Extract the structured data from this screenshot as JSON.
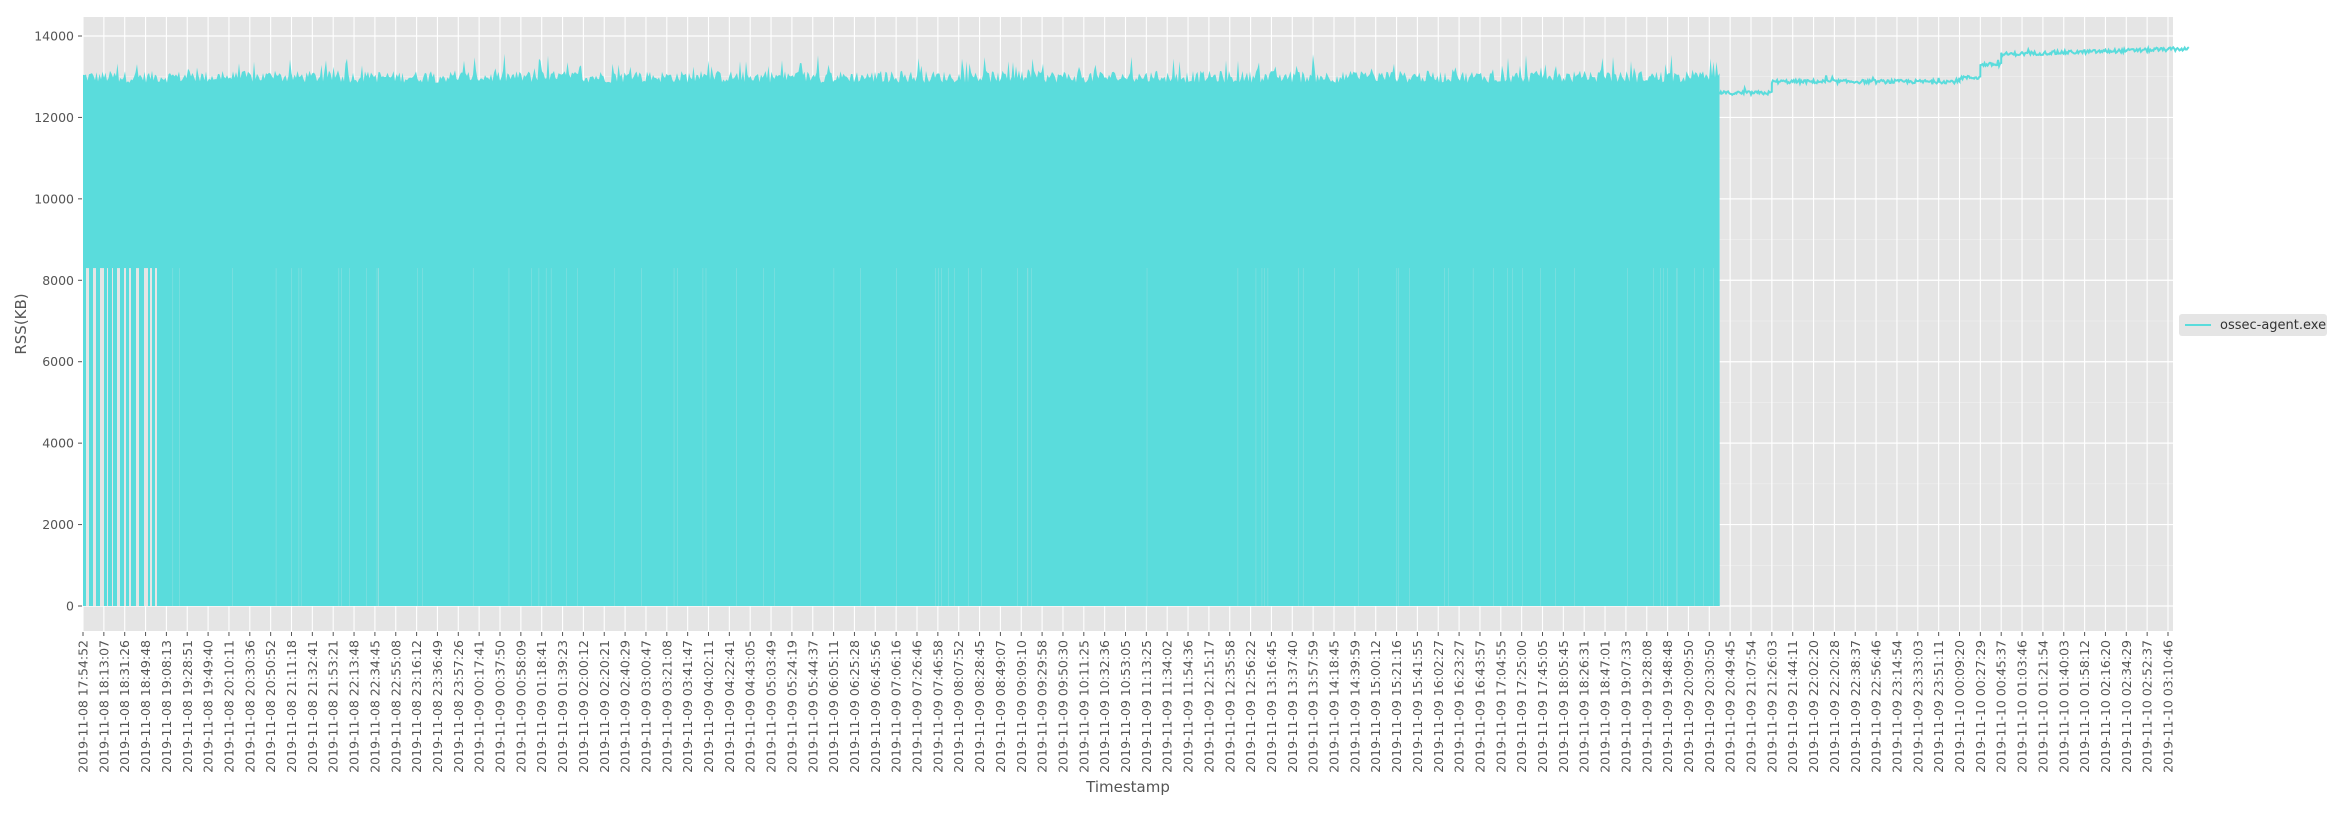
{
  "chart_data": {
    "type": "area",
    "title": "",
    "xlabel": "Timestamp",
    "ylabel": "RSS(KB)",
    "ylim": [
      -700,
      14450
    ],
    "yticks": [
      0,
      2000,
      4000,
      6000,
      8000,
      10000,
      12000,
      14000
    ],
    "grid": true,
    "legend_position": "right",
    "series": [
      {
        "name": "ossec-agent.exe",
        "color": "#5adcdc",
        "description": "From 2019-11-08 17:54:52 until ~2019-11-09 20:40 the series oscillates rapidly between ~0 and ~12900-13300 KB (dense filled band); early portion (17:54-19:08) has floor ~8300 KB with drops to 0. After ~20:40 on 2019-11-09 it is a steady line rising from ~12600 to ~13600 KB.",
        "segments": [
          {
            "x_start": "2019-11-08 17:54:52",
            "x_end": "2019-11-08 19:08:13",
            "low": 8300,
            "high": 12950,
            "drops_to_zero": true
          },
          {
            "x_start": "2019-11-08 19:08:13",
            "x_end": "2019-11-09 20:40:00",
            "low": 0,
            "high": 13100,
            "peak": 13800
          },
          {
            "x_start": "2019-11-09 20:40:00",
            "x_end": "2019-11-09 21:26:03",
            "value": 12600
          },
          {
            "x_start": "2019-11-09 21:26:03",
            "x_end": "2019-11-10 00:09:20",
            "value": 12900
          },
          {
            "x_start": "2019-11-10 00:09:20",
            "x_end": "2019-11-10 00:27:29",
            "value": 13000
          },
          {
            "x_start": "2019-11-10 00:27:29",
            "x_end": "2019-11-10 00:45:37",
            "value": 13300
          },
          {
            "x_start": "2019-11-10 00:45:37",
            "x_end": "2019-11-10 03:10:46",
            "value": 13550
          }
        ]
      }
    ],
    "categories": [
      "2019-11-08 17:54:52",
      "2019-11-08 18:13:07",
      "2019-11-08 18:31:26",
      "2019-11-08 18:49:48",
      "2019-11-08 19:08:13",
      "2019-11-08 19:28:51",
      "2019-11-08 19:49:40",
      "2019-11-08 20:10:11",
      "2019-11-08 20:30:36",
      "2019-11-08 20:50:52",
      "2019-11-08 21:11:18",
      "2019-11-08 21:32:41",
      "2019-11-08 21:53:21",
      "2019-11-08 22:13:48",
      "2019-11-08 22:34:45",
      "2019-11-08 22:55:08",
      "2019-11-08 23:16:12",
      "2019-11-08 23:36:49",
      "2019-11-08 23:57:26",
      "2019-11-09 00:17:41",
      "2019-11-09 00:37:50",
      "2019-11-09 00:58:09",
      "2019-11-09 01:18:41",
      "2019-11-09 01:39:23",
      "2019-11-09 02:00:12",
      "2019-11-09 02:20:21",
      "2019-11-09 02:40:29",
      "2019-11-09 03:00:47",
      "2019-11-09 03:21:08",
      "2019-11-09 03:41:47",
      "2019-11-09 04:02:11",
      "2019-11-09 04:22:41",
      "2019-11-09 04:43:05",
      "2019-11-09 05:03:49",
      "2019-11-09 05:24:19",
      "2019-11-09 05:44:37",
      "2019-11-09 06:05:11",
      "2019-11-09 06:25:28",
      "2019-11-09 06:45:56",
      "2019-11-09 07:06:16",
      "2019-11-09 07:26:46",
      "2019-11-09 07:46:58",
      "2019-11-09 08:07:52",
      "2019-11-09 08:28:45",
      "2019-11-09 08:49:07",
      "2019-11-09 09:09:10",
      "2019-11-09 09:29:58",
      "2019-11-09 09:50:30",
      "2019-11-09 10:11:25",
      "2019-11-09 10:32:36",
      "2019-11-09 10:53:05",
      "2019-11-09 11:13:25",
      "2019-11-09 11:34:02",
      "2019-11-09 11:54:36",
      "2019-11-09 12:15:17",
      "2019-11-09 12:35:58",
      "2019-11-09 12:56:22",
      "2019-11-09 13:16:45",
      "2019-11-09 13:37:40",
      "2019-11-09 13:57:59",
      "2019-11-09 14:18:45",
      "2019-11-09 14:39:59",
      "2019-11-09 15:00:12",
      "2019-11-09 15:21:16",
      "2019-11-09 15:41:55",
      "2019-11-09 16:02:27",
      "2019-11-09 16:23:27",
      "2019-11-09 16:43:57",
      "2019-11-09 17:04:55",
      "2019-11-09 17:25:00",
      "2019-11-09 17:45:05",
      "2019-11-09 18:05:45",
      "2019-11-09 18:26:31",
      "2019-11-09 18:47:01",
      "2019-11-09 19:07:33",
      "2019-11-09 19:28:08",
      "2019-11-09 19:48:48",
      "2019-11-09 20:09:50",
      "2019-11-09 20:30:50",
      "2019-11-09 20:49:45",
      "2019-11-09 21:07:54",
      "2019-11-09 21:26:03",
      "2019-11-09 21:44:11",
      "2019-11-09 22:02:20",
      "2019-11-09 22:20:28",
      "2019-11-09 22:38:37",
      "2019-11-09 22:56:46",
      "2019-11-09 23:14:54",
      "2019-11-09 23:33:03",
      "2019-11-09 23:51:11",
      "2019-11-10 00:09:20",
      "2019-11-10 00:27:29",
      "2019-11-10 00:45:37",
      "2019-11-10 01:03:46",
      "2019-11-10 01:21:54",
      "2019-11-10 01:40:03",
      "2019-11-10 01:58:12",
      "2019-11-10 02:16:20",
      "2019-11-10 02:34:29",
      "2019-11-10 02:52:37",
      "2019-11-10 03:10:46"
    ]
  },
  "legend": {
    "label": "ossec-agent.exe"
  },
  "layout": {
    "background": "#e5e5e5",
    "grid_color": "#ffffff",
    "series_color": "#5adcdc"
  }
}
